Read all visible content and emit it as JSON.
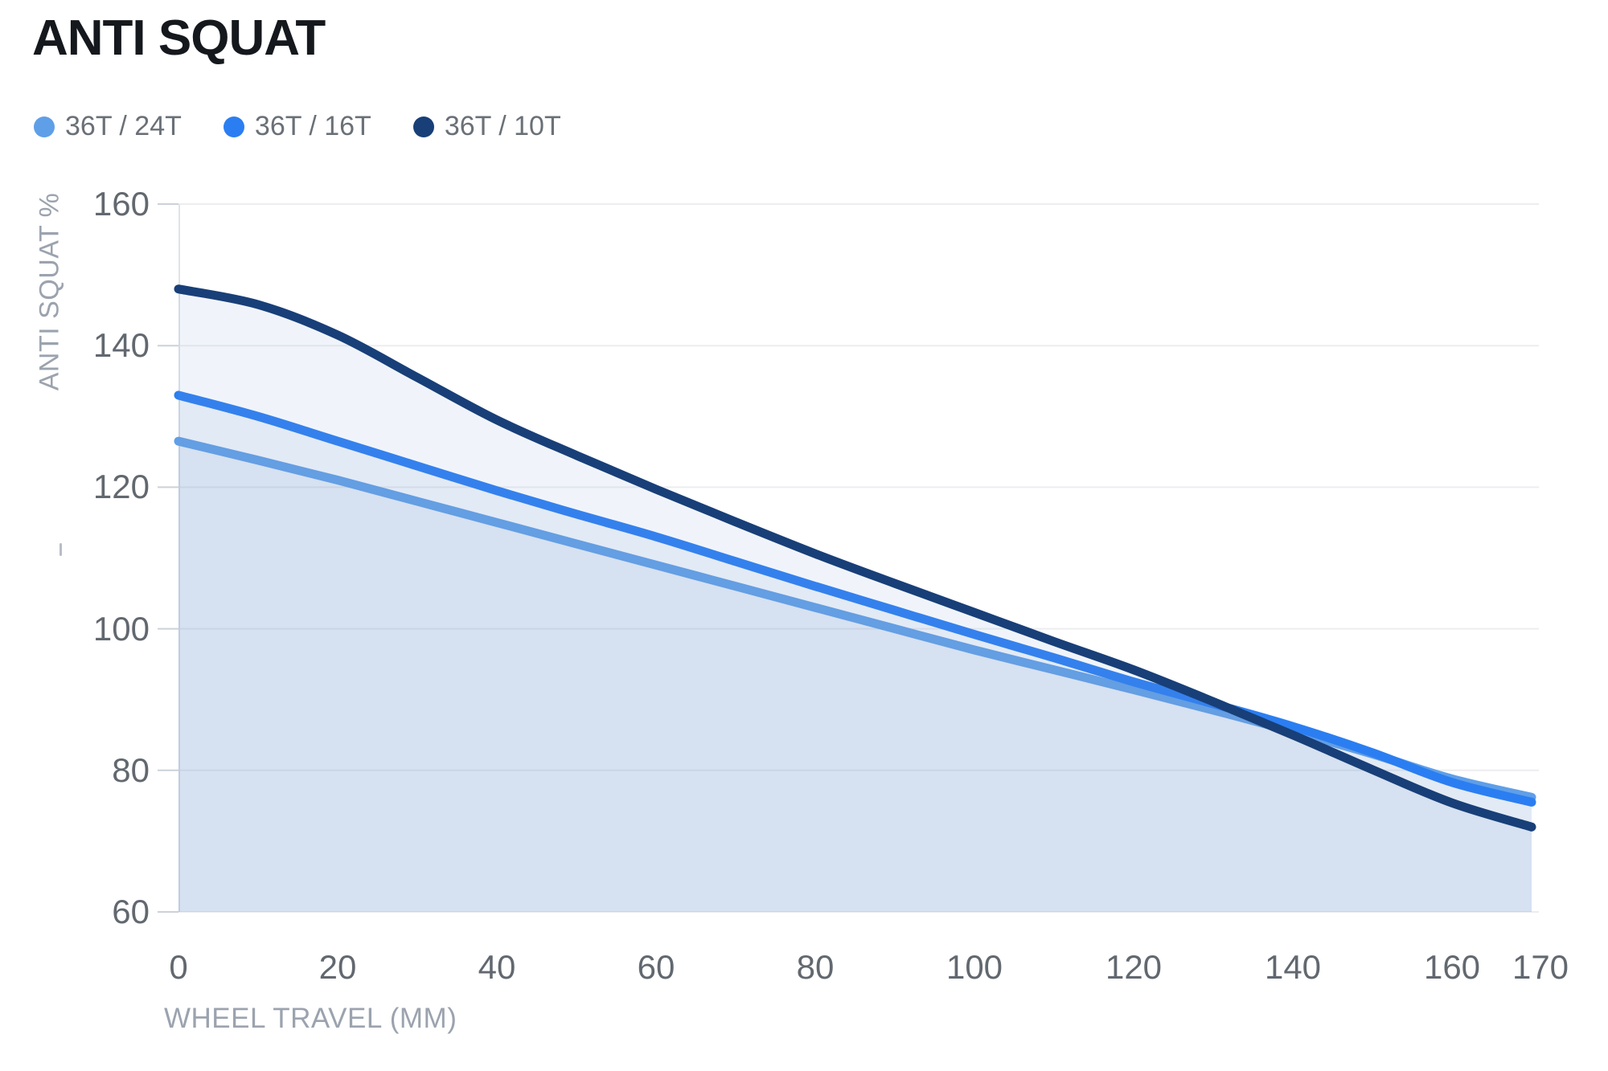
{
  "page": {
    "background": "#ffffff"
  },
  "chart_data": {
    "type": "line",
    "title": "ANTI SQUAT",
    "xlabel": "WHEEL TRAVEL (MM)",
    "ylabel": "ANTI SQUAT %",
    "xlim": [
      0,
      170
    ],
    "ylim": [
      60,
      160
    ],
    "xticks": [
      0,
      20,
      40,
      60,
      80,
      100,
      120,
      140,
      160,
      170
    ],
    "yticks": [
      160,
      140,
      120,
      100,
      80,
      60
    ],
    "grid": "horizontal-only",
    "legend_position": "top-left",
    "x": [
      0,
      10,
      20,
      30,
      40,
      50,
      60,
      70,
      80,
      90,
      100,
      110,
      120,
      130,
      140,
      150,
      160,
      170
    ],
    "series": [
      {
        "name": "36T / 24T",
        "color": "#5f9fe8",
        "values": [
          126.5,
          123.8,
          121,
          118,
          115,
          112,
          109,
          106,
          103,
          100,
          97,
          94.2,
          91.4,
          88.5,
          85.5,
          82.3,
          78.8,
          76.2
        ]
      },
      {
        "name": "36T / 16T",
        "color": "#2b7ef1",
        "values": [
          133,
          130,
          126.5,
          123,
          119.5,
          116.2,
          113,
          109.5,
          106,
          102.6,
          99.2,
          95.9,
          92.5,
          89.4,
          86.2,
          82.5,
          78.3,
          75.5
        ]
      },
      {
        "name": "36T / 10T",
        "color": "#183f78",
        "values": [
          148,
          145.8,
          141.5,
          135.5,
          129.5,
          124.5,
          119.7,
          115.1,
          110.6,
          106.4,
          102.3,
          98.2,
          94.2,
          89.7,
          85,
          80.1,
          75.4,
          72
        ]
      }
    ],
    "area_fill": "rgba(127,157,207,0.115)",
    "line_width": 11
  }
}
